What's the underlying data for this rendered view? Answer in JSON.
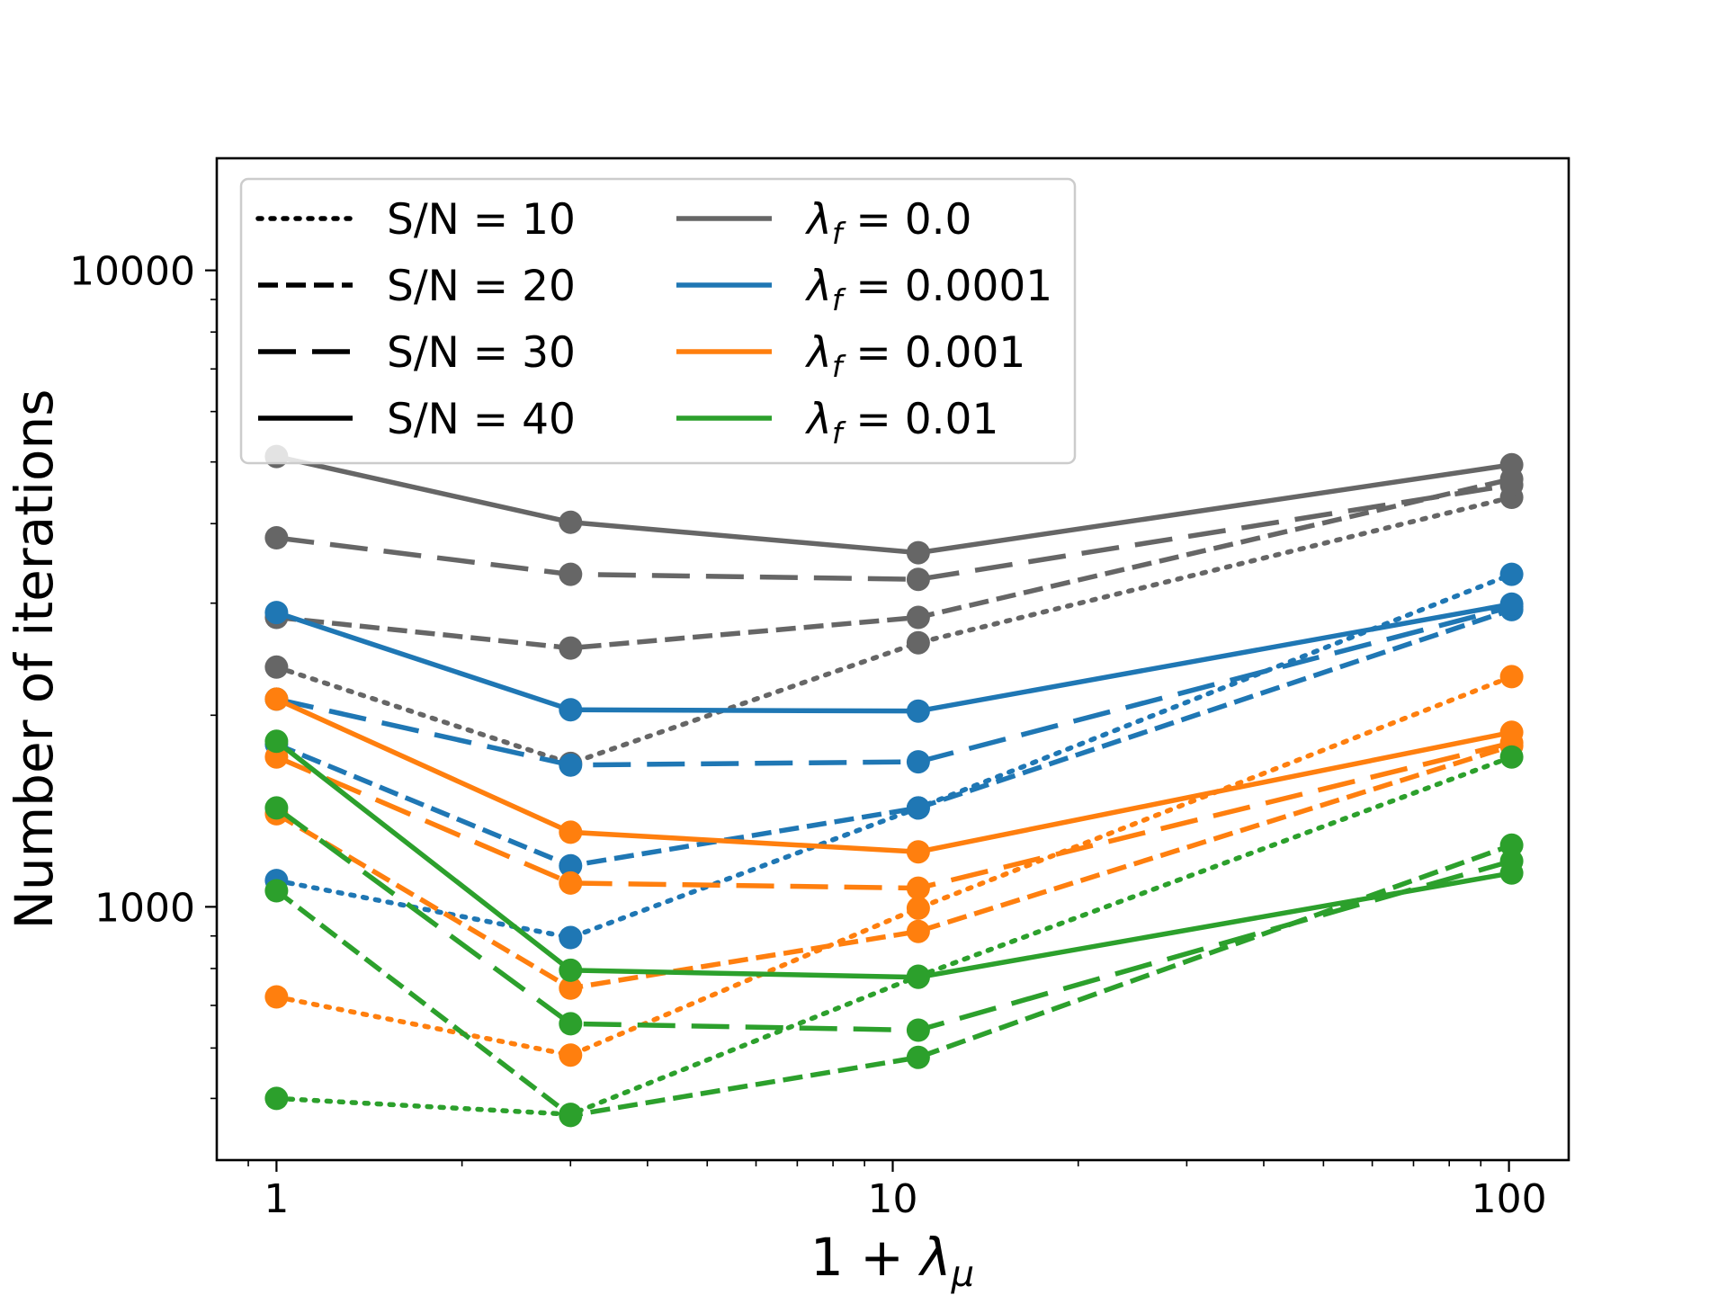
{
  "chart_data": {
    "type": "line",
    "title": "",
    "xlabel": "1 + λ_μ",
    "xlabel_main": "1 + ",
    "xlabel_sym": "λ",
    "xlabel_sub": "μ",
    "ylabel": "Number of iterations",
    "xscale": "log",
    "yscale": "log",
    "xlim": [
      0.8,
      125
    ],
    "ylim": [
      400,
      15000
    ],
    "x": [
      1,
      3,
      11,
      101
    ],
    "x_ticks": [
      {
        "value": 1,
        "label": "1"
      },
      {
        "value": 10,
        "label": "10"
      },
      {
        "value": 100,
        "label": "100"
      }
    ],
    "y_ticks": [
      {
        "value": 1000,
        "label": "1000"
      },
      {
        "value": 10000,
        "label": "10000"
      }
    ],
    "legend_position": "upper-left",
    "legend": {
      "linestyles": [
        {
          "style": "dotted",
          "label": "S/N = 10"
        },
        {
          "style": "dashed-short",
          "label": "S/N = 20"
        },
        {
          "style": "dashed-long",
          "label": "S/N = 30"
        },
        {
          "style": "solid",
          "label": "S/N = 40"
        }
      ],
      "colors": [
        {
          "color": "#666666",
          "sym": "λ",
          "sub": "f",
          "rest": " = 0.0"
        },
        {
          "color": "#1f77b4",
          "sym": "λ",
          "sub": "f",
          "rest": " = 0.0001"
        },
        {
          "color": "#ff7f0e",
          "sym": "λ",
          "sub": "f",
          "rest": " = 0.001"
        },
        {
          "color": "#2ca02c",
          "sym": "λ",
          "sub": "f",
          "rest": " = 0.01"
        }
      ]
    },
    "series": [
      {
        "name": "λf=0.0, S/N=10",
        "color": "#666666",
        "style": "dotted",
        "values": [
          2380,
          1680,
          2600,
          4400
        ]
      },
      {
        "name": "λf=0.0, S/N=20",
        "color": "#666666",
        "style": "dashed-short",
        "values": [
          2850,
          2550,
          2850,
          4700
        ]
      },
      {
        "name": "λf=0.0, S/N=30",
        "color": "#666666",
        "style": "dashed-long",
        "values": [
          3800,
          3330,
          3270,
          4600
        ]
      },
      {
        "name": "λf=0.0, S/N=40",
        "color": "#666666",
        "style": "solid",
        "values": [
          5100,
          4020,
          3600,
          4950
        ]
      },
      {
        "name": "λf=0.0001, S/N=10",
        "color": "#1f77b4",
        "style": "dotted",
        "values": [
          1100,
          895,
          1430,
          3330
        ]
      },
      {
        "name": "λf=0.0001, S/N=20",
        "color": "#1f77b4",
        "style": "dashed-short",
        "values": [
          1800,
          1160,
          1430,
          2930
        ]
      },
      {
        "name": "λf=0.0001, S/N=30",
        "color": "#1f77b4",
        "style": "dashed-long",
        "values": [
          2120,
          1670,
          1690,
          2960
        ]
      },
      {
        "name": "λf=0.0001, S/N=40",
        "color": "#1f77b4",
        "style": "solid",
        "values": [
          2900,
          2040,
          2030,
          2990
        ]
      },
      {
        "name": "λf=0.001, S/N=10",
        "color": "#ff7f0e",
        "style": "dotted",
        "values": [
          722,
          585,
          995,
          2300
        ]
      },
      {
        "name": "λf=0.001, S/N=20",
        "color": "#ff7f0e",
        "style": "dashed-short",
        "values": [
          1400,
          745,
          915,
          1790
        ]
      },
      {
        "name": "λf=0.001, S/N=30",
        "color": "#ff7f0e",
        "style": "dashed-long",
        "values": [
          1720,
          1090,
          1070,
          1810
        ]
      },
      {
        "name": "λf=0.001, S/N=40",
        "color": "#ff7f0e",
        "style": "solid",
        "values": [
          2120,
          1310,
          1220,
          1880
        ]
      },
      {
        "name": "λf=0.01, S/N=10",
        "color": "#2ca02c",
        "style": "dotted",
        "values": [
          500,
          472,
          778,
          1720
        ]
      },
      {
        "name": "λf=0.01, S/N=20",
        "color": "#2ca02c",
        "style": "dashed-short",
        "values": [
          1060,
          470,
          580,
          1250
        ]
      },
      {
        "name": "λf=0.01, S/N=30",
        "color": "#2ca02c",
        "style": "dashed-long",
        "values": [
          1430,
          655,
          640,
          1180
        ]
      },
      {
        "name": "λf=0.01, S/N=40",
        "color": "#2ca02c",
        "style": "solid",
        "values": [
          1820,
          795,
          775,
          1130
        ]
      }
    ]
  }
}
